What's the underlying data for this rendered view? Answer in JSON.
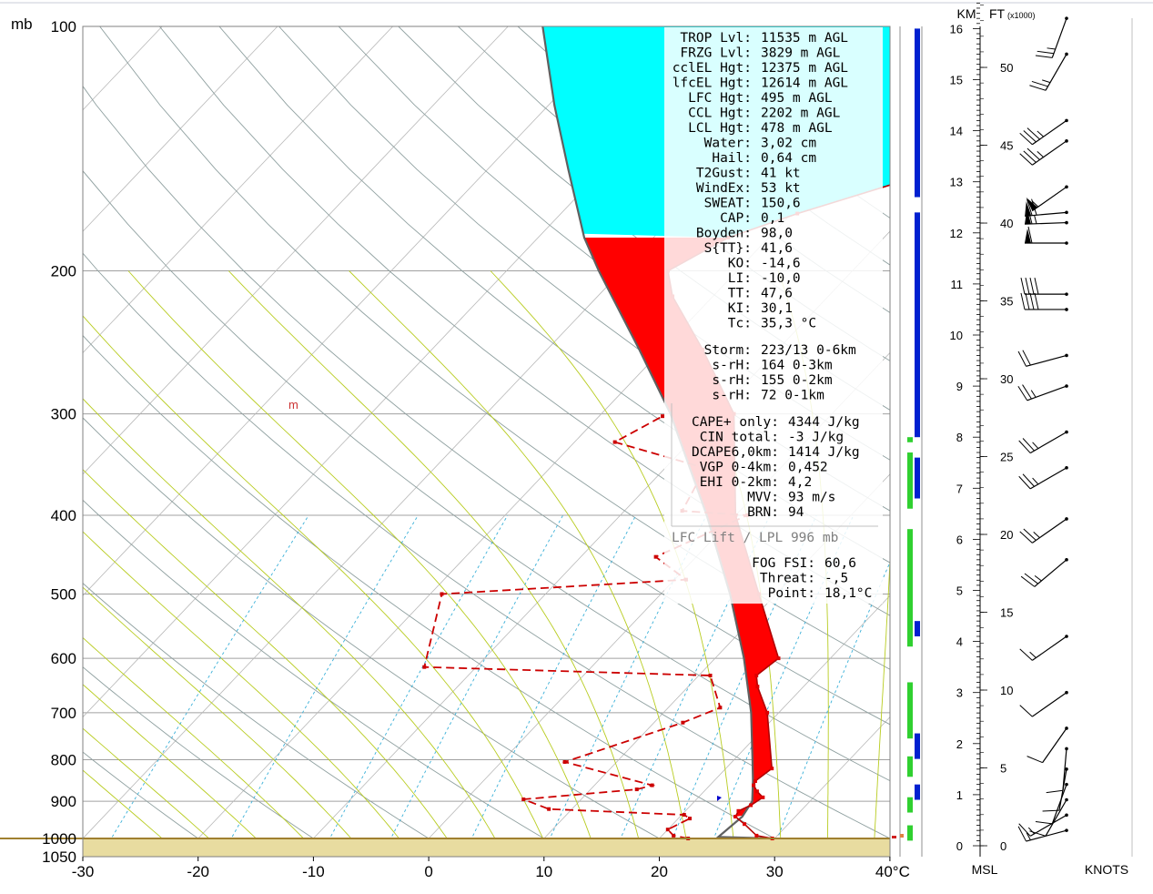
{
  "chart_data": {
    "type": "skew-t log-p sounding",
    "x_axis": {
      "ticks": [
        -30,
        -20,
        -10,
        0,
        10,
        20,
        30,
        40
      ],
      "tick_labels": [
        "-30",
        "-20",
        "-10",
        "0",
        "10",
        "20",
        "30",
        "40°C"
      ],
      "range": [
        -30,
        40
      ]
    },
    "y_axis": {
      "unit_label": "mb",
      "ticks": [
        100,
        200,
        300,
        400,
        500,
        600,
        700,
        800,
        900,
        1000,
        1050
      ],
      "tick_labels": [
        "100",
        "200",
        "300",
        "400",
        "500",
        "600",
        "700",
        "800",
        "900",
        "1000",
        "1050"
      ],
      "range": [
        100,
        1050
      ],
      "scale": "log"
    },
    "surface_pressure": 1000,
    "temperature_profile": [
      {
        "p": 1000,
        "t": 29.8
      },
      {
        "p": 992,
        "t": 28.2
      },
      {
        "p": 960,
        "t": 26.2
      },
      {
        "p": 940,
        "t": 24.8
      },
      {
        "p": 925,
        "t": 24.6
      },
      {
        "p": 910,
        "t": 25.2
      },
      {
        "p": 890,
        "t": 25.6
      },
      {
        "p": 875,
        "t": 24.6
      },
      {
        "p": 860,
        "t": 23.8
      },
      {
        "p": 850,
        "t": 23.6
      },
      {
        "p": 820,
        "t": 24.0
      },
      {
        "p": 700,
        "t": 19.0
      },
      {
        "p": 650,
        "t": 16.0
      },
      {
        "p": 630,
        "t": 15.0
      },
      {
        "p": 600,
        "t": 15.5
      },
      {
        "p": 500,
        "t": 8.5
      },
      {
        "p": 400,
        "t": 0.0
      },
      {
        "p": 300,
        "t": -8.5
      },
      {
        "p": 250,
        "t": -16.5
      },
      {
        "p": 215,
        "t": -23.5
      },
      {
        "p": 200,
        "t": -26.0
      },
      {
        "p": 182,
        "t": -23.5
      },
      {
        "p": 170,
        "t": -19.5
      },
      {
        "p": 155,
        "t": -13.0
      },
      {
        "p": 125,
        "t": -1.5
      },
      {
        "p": 100,
        "t": 14.0
      }
    ],
    "dewpoint_profile": [
      {
        "p": 1000,
        "t": 22.5
      },
      {
        "p": 992,
        "t": 21.0
      },
      {
        "p": 975,
        "t": 20.0
      },
      {
        "p": 945,
        "t": 21.0
      },
      {
        "p": 935,
        "t": 20.2
      },
      {
        "p": 920,
        "t": 8.0
      },
      {
        "p": 895,
        "t": 5.0
      },
      {
        "p": 870,
        "t": 14.0
      },
      {
        "p": 860,
        "t": 15.0
      },
      {
        "p": 805,
        "t": 5.5
      },
      {
        "p": 720,
        "t": 12.5
      },
      {
        "p": 690,
        "t": 14.5
      },
      {
        "p": 630,
        "t": 11.0
      },
      {
        "p": 615,
        "t": -14.5
      },
      {
        "p": 500,
        "t": -19.0
      },
      {
        "p": 480,
        "t": 1.0
      },
      {
        "p": 450,
        "t": -3.5
      },
      {
        "p": 400,
        "t": 1.0
      },
      {
        "p": 395,
        "t": -5.0
      },
      {
        "p": 350,
        "t": -6.5
      },
      {
        "p": 325,
        "t": -16.5
      },
      {
        "p": 302,
        "t": -14.5
      }
    ],
    "moisture_marker": "m",
    "parcel_profile": [
      {
        "p": 1000,
        "t": 29.8
      },
      {
        "p": 996,
        "t": 25.0
      },
      {
        "p": 940,
        "t": 25.4
      },
      {
        "p": 900,
        "t": 25.0
      },
      {
        "p": 850,
        "t": 23.4
      },
      {
        "p": 800,
        "t": 21.6
      },
      {
        "p": 700,
        "t": 17.6
      },
      {
        "p": 600,
        "t": 12.5
      },
      {
        "p": 500,
        "t": 6.0
      },
      {
        "p": 400,
        "t": -2.5
      },
      {
        "p": 300,
        "t": -14.0
      },
      {
        "p": 250,
        "t": -22.0
      },
      {
        "p": 200,
        "t": -32.0
      },
      {
        "p": 182,
        "t": -36.0
      },
      {
        "p": 150,
        "t": -43.0
      },
      {
        "p": 125,
        "t": -49.5
      },
      {
        "p": 100,
        "t": -57.0
      }
    ],
    "cape_fill_color": "#ff0000",
    "overshoot_fill_color": "#00ffff",
    "dry_adiabat_color": "#8fa0a0",
    "moist_adiabat_color": "#b8cc20",
    "mixing_ratio_color": "#3ab0d8",
    "ground_color": "#e8dca0",
    "stats": {
      "block1": [
        [
          "TROP Lvl:",
          "11535 m AGL"
        ],
        [
          "FRZG Lvl:",
          "3829 m AGL"
        ],
        [
          "cclEL Hgt:",
          "12375 m AGL"
        ],
        [
          "lfcEL Hgt:",
          "12614 m AGL"
        ],
        [
          "LFC Hgt:",
          "495 m AGL"
        ],
        [
          "CCL Hgt:",
          "2202 m AGL"
        ],
        [
          "LCL Hgt:",
          "478 m AGL"
        ],
        [
          "Water:",
          "3,02 cm"
        ],
        [
          "Hail:",
          "0,64 cm"
        ],
        [
          "T2Gust:",
          "41 kt"
        ],
        [
          "WindEx:",
          "53 kt"
        ],
        [
          "SWEAT:",
          "150,6"
        ],
        [
          "CAP:",
          "0,1"
        ],
        [
          "Boyden:",
          "98,0"
        ],
        [
          "S{TT}:",
          "41,6"
        ],
        [
          "KO:",
          "-14,6"
        ],
        [
          "LI:",
          "-10,0"
        ],
        [
          "TT:",
          "47,6"
        ],
        [
          "KI:",
          "30,1"
        ],
        [
          "Tc:",
          "35,3 °C"
        ]
      ],
      "block2": [
        [
          "Storm:",
          "223/13 0-6km"
        ],
        [
          "s-rH:",
          "164  0-3km"
        ],
        [
          "s-rH:",
          "155  0-2km"
        ],
        [
          "s-rH:",
          "72  0-1km"
        ]
      ],
      "block3": [
        [
          "CAPE+ only:",
          "4344 J/kg"
        ],
        [
          "CIN total:",
          "-3 J/kg"
        ],
        [
          "DCAPE6,0km:",
          "1414 J/kg"
        ],
        [
          "VGP 0-4km:",
          "0,452"
        ],
        [
          "EHI 0-2km:",
          "4,2"
        ],
        [
          "MVV:",
          "93 m/s"
        ],
        [
          "BRN:",
          "94"
        ]
      ],
      "lift_note": "LFC Lift / LPL 996 mb",
      "block4": [
        [
          "FOG FSI:",
          "60,6"
        ],
        [
          "Threat:",
          "-,5"
        ],
        [
          "Point:",
          "18,1°C"
        ]
      ]
    },
    "cloud_bars": {
      "green": [
        [
          0.1,
          0.4
        ],
        [
          0.65,
          0.95
        ],
        [
          1.35,
          1.75
        ],
        [
          2.1,
          3.2
        ],
        [
          3.9,
          6.2
        ],
        [
          6.6,
          7.7
        ],
        [
          7.9,
          8.0
        ]
      ],
      "blue": [
        [
          0.9,
          1.2
        ],
        [
          1.7,
          2.2
        ],
        [
          4.1,
          4.4
        ],
        [
          6.8,
          7.6
        ],
        [
          8.0,
          12.4
        ],
        [
          12.7,
          16.0
        ]
      ]
    },
    "height_axis": {
      "km_label": "KM",
      "ft_label": "FT",
      "ft_multiplier_label": "(x1000)",
      "bottom_label": "MSL",
      "km_ticks": [
        0,
        1,
        2,
        3,
        4,
        5,
        6,
        7,
        8,
        9,
        10,
        11,
        12,
        13,
        14,
        15,
        16
      ],
      "ft_ticks": [
        0,
        5,
        10,
        15,
        20,
        25,
        30,
        35,
        40,
        45,
        50
      ]
    },
    "wind_profile": {
      "unit_label": "KNOTS",
      "barbs": [
        {
          "km": 0.3,
          "dir": 255,
          "spd": 15
        },
        {
          "km": 0.6,
          "dir": 240,
          "spd": 15
        },
        {
          "km": 0.9,
          "dir": 210,
          "spd": 10
        },
        {
          "km": 1.2,
          "dir": 200,
          "spd": 10
        },
        {
          "km": 1.5,
          "dir": 190,
          "spd": 10
        },
        {
          "km": 1.9,
          "dir": 185,
          "spd": 10
        },
        {
          "km": 2.3,
          "dir": 215,
          "spd": 10
        },
        {
          "km": 3.0,
          "dir": 235,
          "spd": 10
        },
        {
          "km": 4.1,
          "dir": 235,
          "spd": 15
        },
        {
          "km": 5.6,
          "dir": 230,
          "spd": 25
        },
        {
          "km": 6.4,
          "dir": 235,
          "spd": 25
        },
        {
          "km": 7.4,
          "dir": 240,
          "spd": 25
        },
        {
          "km": 8.1,
          "dir": 240,
          "spd": 25
        },
        {
          "km": 9.0,
          "dir": 250,
          "spd": 25
        },
        {
          "km": 9.6,
          "dir": 255,
          "spd": 20
        },
        {
          "km": 10.5,
          "dir": 270,
          "spd": 40
        },
        {
          "km": 10.8,
          "dir": 270,
          "spd": 40
        },
        {
          "km": 11.8,
          "dir": 270,
          "spd": 60
        },
        {
          "km": 12.2,
          "dir": 268,
          "spd": 65
        },
        {
          "km": 12.4,
          "dir": 265,
          "spd": 70
        },
        {
          "km": 12.9,
          "dir": 235,
          "spd": 55
        },
        {
          "km": 13.8,
          "dir": 235,
          "spd": 35
        },
        {
          "km": 14.2,
          "dir": 235,
          "spd": 35
        },
        {
          "km": 15.5,
          "dir": 210,
          "spd": 25
        },
        {
          "km": 16.2,
          "dir": 200,
          "spd": 25
        }
      ]
    }
  }
}
